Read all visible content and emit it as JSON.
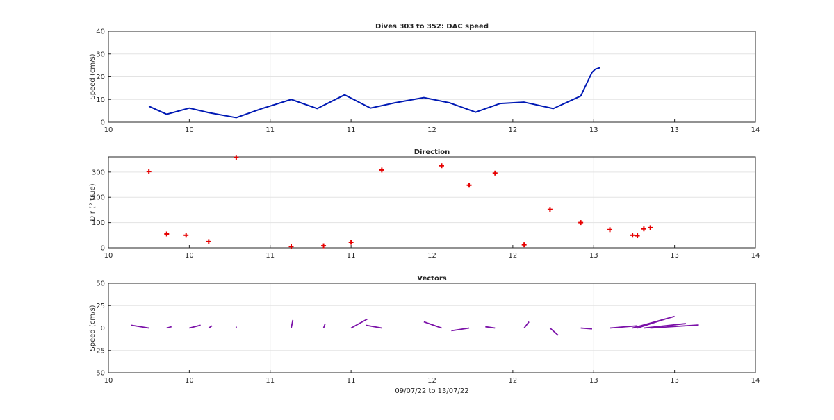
{
  "chart_data": [
    {
      "type": "line",
      "title": "Dives 303 to 352: DAC speed",
      "xlabel": "",
      "ylabel": "Speed (cm/s)",
      "xlim": [
        10,
        14
      ],
      "ylim": [
        0,
        40
      ],
      "xticks": [
        10,
        11,
        12,
        13,
        14
      ],
      "xtick_labels": [
        "10",
        "10",
        "11",
        "11",
        "12",
        "12",
        "13",
        "13",
        "14"
      ],
      "yticks": [
        0,
        10,
        20,
        30,
        40
      ],
      "grid": true,
      "series": [
        {
          "color": "#0019b4",
          "x": [
            10.25,
            10.36,
            10.5,
            10.62,
            10.79,
            10.95,
            11.13,
            11.29,
            11.46,
            11.62,
            11.77,
            11.95,
            12.11,
            12.27,
            12.42,
            12.57,
            12.75,
            12.92,
            12.96,
            12.99,
            13.01,
            13.04
          ],
          "y": [
            7,
            3.5,
            6.2,
            4.2,
            2,
            6,
            10,
            6,
            12,
            6.2,
            8.5,
            10.8,
            8.5,
            4.4,
            8.2,
            8.8,
            6,
            11.5,
            17.5,
            22,
            23.3,
            24
          ]
        }
      ]
    },
    {
      "type": "scatter",
      "title": "Direction",
      "xlabel": "",
      "ylabel": "Dir (° true)",
      "xlim": [
        10,
        14
      ],
      "ylim": [
        0,
        360
      ],
      "xticks": [
        10,
        11,
        12,
        13,
        14
      ],
      "xtick_labels": [
        "10",
        "10",
        "11",
        "11",
        "12",
        "12",
        "13",
        "13",
        "14"
      ],
      "yticks": [
        0,
        100,
        200,
        300
      ],
      "grid": true,
      "marker": "+",
      "color": "#e60000",
      "x": [
        10.25,
        10.36,
        10.48,
        10.62,
        10.79,
        11.13,
        11.33,
        11.5,
        11.69,
        12.06,
        12.23,
        12.39,
        12.57,
        12.73,
        12.92,
        13.1,
        13.24,
        13.27,
        13.31,
        13.35
      ],
      "y": [
        302,
        55,
        50,
        25,
        358,
        5,
        8,
        22,
        308,
        325,
        248,
        296,
        12,
        152,
        100,
        72,
        50,
        48,
        75,
        80
      ]
    },
    {
      "type": "line",
      "title": "Vectors",
      "xlabel": "09/07/22 to 13/07/22",
      "ylabel": "Speed (cm/s)",
      "xlim": [
        10,
        14
      ],
      "ylim": [
        -50,
        50
      ],
      "xticks": [
        10,
        11,
        12,
        13,
        14
      ],
      "xtick_labels": [
        "10",
        "10",
        "11",
        "11",
        "12",
        "12",
        "13",
        "13",
        "14"
      ],
      "yticks": [
        -50,
        -25,
        0,
        25,
        50
      ],
      "grid": true,
      "zero_line": true,
      "color": "#7b11a8",
      "vectors": [
        {
          "x": 10.25,
          "u": -0.11,
          "v": 3.2
        },
        {
          "x": 10.36,
          "u": 0.03,
          "v": 1.5
        },
        {
          "x": 10.5,
          "u": 0.07,
          "v": 3.2
        },
        {
          "x": 10.62,
          "u": 0.02,
          "v": 2.5
        },
        {
          "x": 10.79,
          "u": 0,
          "v": 1.6
        },
        {
          "x": 11.13,
          "u": 0.01,
          "v": 9
        },
        {
          "x": 11.33,
          "u": 0.01,
          "v": 5
        },
        {
          "x": 11.5,
          "u": 0.1,
          "v": 10
        },
        {
          "x": 11.69,
          "u": -0.1,
          "v": 3.2
        },
        {
          "x": 12.06,
          "u": -0.11,
          "v": 7
        },
        {
          "x": 12.23,
          "u": -0.11,
          "v": -3
        },
        {
          "x": 12.39,
          "u": -0.06,
          "v": 1.5
        },
        {
          "x": 12.57,
          "u": 0.03,
          "v": 7
        },
        {
          "x": 12.73,
          "u": 0.05,
          "v": -8
        },
        {
          "x": 12.92,
          "u": 0.07,
          "v": -1
        },
        {
          "x": 13.1,
          "u": 0.17,
          "v": 2.5
        },
        {
          "x": 13.24,
          "u": 0.26,
          "v": 13
        },
        {
          "x": 13.27,
          "u": 0.17,
          "v": 10
        },
        {
          "x": 13.31,
          "u": 0.26,
          "v": 5
        },
        {
          "x": 13.35,
          "u": 0.3,
          "v": 3.5
        }
      ]
    }
  ]
}
